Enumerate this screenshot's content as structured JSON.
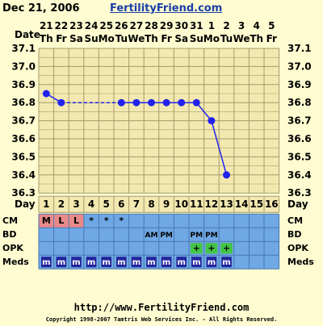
{
  "header": {
    "date": "Dec 21, 2006",
    "site": "FertilityFriend.com"
  },
  "chart_data": {
    "type": "line",
    "dates": [
      "21",
      "22",
      "23",
      "24",
      "25",
      "26",
      "27",
      "28",
      "29",
      "30",
      "31",
      "1",
      "2",
      "3",
      "4",
      "5"
    ],
    "weekdays": [
      "Th",
      "Fr",
      "Sa",
      "Su",
      "Mo",
      "Tu",
      "We",
      "Th",
      "Fr",
      "Sa",
      "Su",
      "Mo",
      "Tu",
      "We",
      "Th",
      "Fr"
    ],
    "days": [
      "1",
      "2",
      "3",
      "4",
      "5",
      "6",
      "7",
      "8",
      "9",
      "10",
      "11",
      "12",
      "13",
      "14",
      "15",
      "16"
    ],
    "day_label": "Day",
    "y_ticks": [
      "37.1",
      "37.0",
      "36.9",
      "36.8",
      "36.7",
      "36.6",
      "36.5",
      "36.4",
      "36.3"
    ],
    "ylim": [
      36.3,
      37.1
    ],
    "temperatures": [
      36.85,
      36.8,
      null,
      null,
      null,
      36.8,
      36.8,
      36.8,
      36.8,
      36.8,
      36.8,
      36.7,
      36.4,
      null,
      null,
      null
    ],
    "rows": [
      {
        "label": "CM",
        "cells": [
          "M",
          "L",
          "L",
          "*",
          "*",
          "*",
          "",
          "",
          "",
          "",
          "",
          "",
          "",
          "",
          "",
          ""
        ]
      },
      {
        "label": "BD",
        "cells": [
          "",
          "",
          "",
          "",
          "",
          "",
          "",
          "AM",
          "PM",
          "",
          "PM",
          "PM",
          "",
          "",
          "",
          ""
        ]
      },
      {
        "label": "OPK",
        "cells": [
          "",
          "",
          "",
          "",
          "",
          "",
          "",
          "",
          "",
          "",
          "+",
          "+",
          "+",
          "",
          "",
          ""
        ]
      },
      {
        "label": "Meds",
        "cells": [
          "m",
          "m",
          "m",
          "m",
          "m",
          "m",
          "m",
          "m",
          "m",
          "m",
          "m",
          "m",
          "m",
          "",
          "",
          ""
        ]
      }
    ],
    "colors": {
      "grid_bg": "#f3e9b0",
      "grid_line": "#a49a6c",
      "line": "#2222ee",
      "row_bg": "#6fa8e4",
      "cm_highlight": "#e88a8a",
      "opk_highlight": "#43c443",
      "meds_bg": "#24249c"
    }
  },
  "footer": {
    "url": "http://www.FertilityFriend.com",
    "copyright": "Copyright 1998-2007 Tamtris Web Services Inc. - All Rights Reserved."
  }
}
